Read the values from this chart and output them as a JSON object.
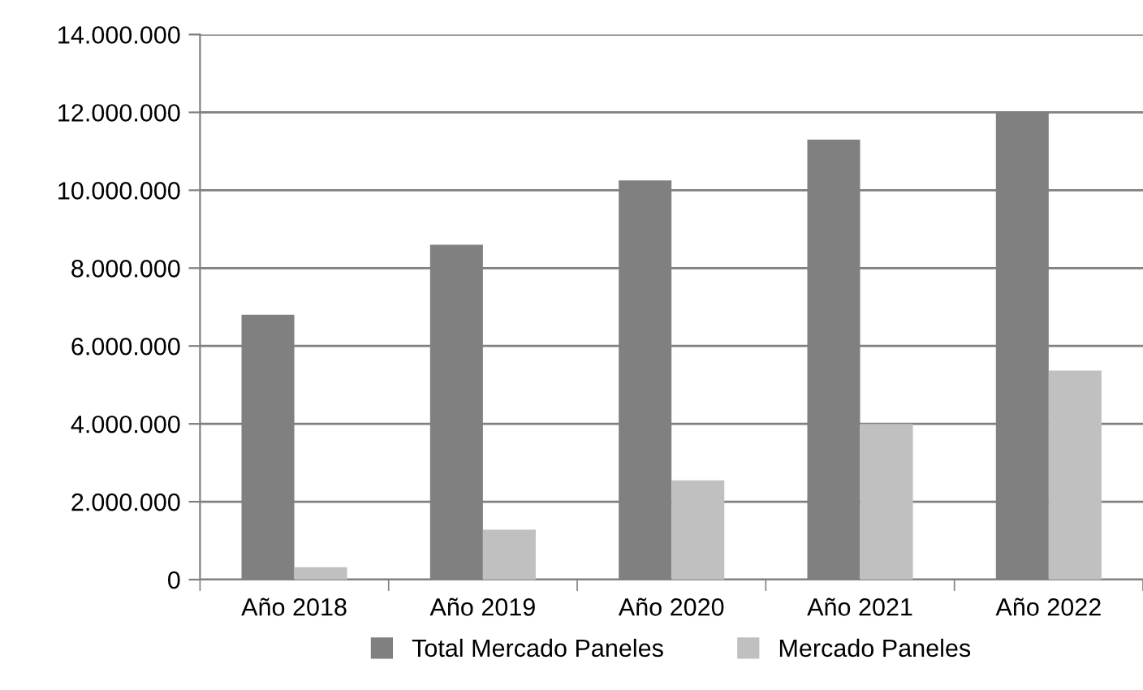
{
  "chart_data": {
    "type": "bar",
    "categories": [
      "Año 2018",
      "Año 2019",
      "Año 2020",
      "Año 2021",
      "Año 2022"
    ],
    "series": [
      {
        "name": "Total Mercado Paneles",
        "color": "#808080",
        "values": [
          6800000,
          8600000,
          10250000,
          11300000,
          12000000
        ]
      },
      {
        "name": "Mercado Paneles",
        "color": "#c0c0c0",
        "values": [
          320000,
          1280000,
          2550000,
          4000000,
          5370000
        ]
      }
    ],
    "ylim": [
      0,
      14000000
    ],
    "yticks": [
      {
        "value": 0,
        "label": "0"
      },
      {
        "value": 2000000,
        "label": "2.000.000"
      },
      {
        "value": 4000000,
        "label": "4.000.000"
      },
      {
        "value": 6000000,
        "label": "6.000.000"
      },
      {
        "value": 8000000,
        "label": "8.000.000"
      },
      {
        "value": 10000000,
        "label": "10.000.000"
      },
      {
        "value": 12000000,
        "label": "12.000.000"
      },
      {
        "value": 14000000,
        "label": "14.000.000"
      }
    ],
    "grid": "y",
    "legend": "bottom"
  }
}
